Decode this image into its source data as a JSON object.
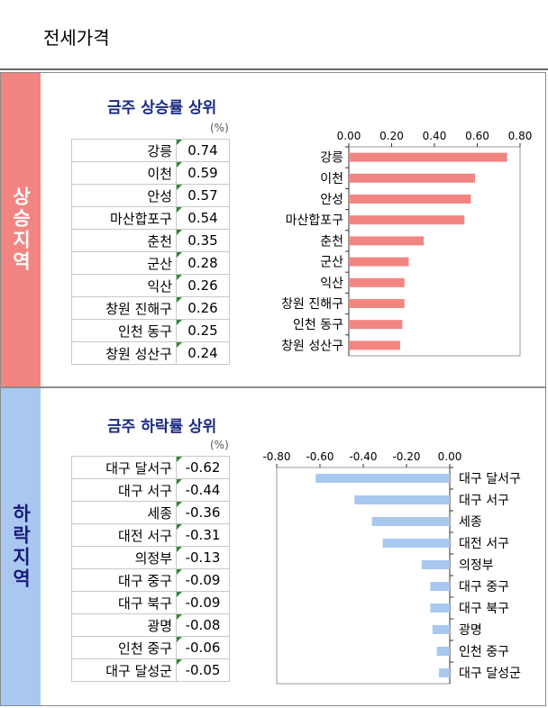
{
  "page_title": "전세가격",
  "rise": {
    "side_label": "상승지역",
    "title": "금주 상승률 상위",
    "unit": "(%)",
    "rows": [
      {
        "name": "강릉",
        "value": "0.74"
      },
      {
        "name": "이천",
        "value": "0.59"
      },
      {
        "name": "안성",
        "value": "0.57"
      },
      {
        "name": "마산합포구",
        "value": "0.54"
      },
      {
        "name": "춘천",
        "value": "0.35"
      },
      {
        "name": "군산",
        "value": "0.28"
      },
      {
        "name": "익산",
        "value": "0.26"
      },
      {
        "name": "창원 진해구",
        "value": "0.26"
      },
      {
        "name": "인천 동구",
        "value": "0.25"
      },
      {
        "name": "창원 성산구",
        "value": "0.24"
      }
    ]
  },
  "fall": {
    "side_label": "하락지역",
    "title": "금주 하락률 상위",
    "unit": "(%)",
    "rows": [
      {
        "name": "대구 달서구",
        "value": "-0.62"
      },
      {
        "name": "대구 서구",
        "value": "-0.44"
      },
      {
        "name": "세종",
        "value": "-0.36"
      },
      {
        "name": "대전 서구",
        "value": "-0.31"
      },
      {
        "name": "의정부",
        "value": "-0.13"
      },
      {
        "name": "대구 중구",
        "value": "-0.09"
      },
      {
        "name": "대구 북구",
        "value": "-0.09"
      },
      {
        "name": "광명",
        "value": "-0.08"
      },
      {
        "name": "인천 중구",
        "value": "-0.06"
      },
      {
        "name": "대구 달성군",
        "value": "-0.05"
      }
    ]
  },
  "chart_data": [
    {
      "type": "bar",
      "orientation": "horizontal",
      "categories": [
        "강릉",
        "이천",
        "안성",
        "마산합포구",
        "춘천",
        "군산",
        "익산",
        "창원 진해구",
        "인천 동구",
        "창원 성산구"
      ],
      "values": [
        0.74,
        0.59,
        0.57,
        0.54,
        0.35,
        0.28,
        0.26,
        0.26,
        0.25,
        0.24
      ],
      "xlim": [
        0,
        0.8
      ],
      "ticks": [
        "0.00",
        "0.20",
        "0.40",
        "0.60",
        "0.80"
      ],
      "tick_values": [
        0,
        0.2,
        0.4,
        0.6,
        0.8
      ],
      "axis_position": "top",
      "grid": false,
      "color": "#f28582"
    },
    {
      "type": "bar",
      "orientation": "horizontal",
      "categories": [
        "대구 달서구",
        "대구 서구",
        "세종",
        "대전 서구",
        "의정부",
        "대구 중구",
        "대구 북구",
        "광명",
        "인천 중구",
        "대구 달성군"
      ],
      "values": [
        -0.62,
        -0.44,
        -0.36,
        -0.31,
        -0.13,
        -0.09,
        -0.09,
        -0.08,
        -0.06,
        -0.05
      ],
      "xlim": [
        -0.8,
        0
      ],
      "ticks": [
        "-0.80",
        "-0.60",
        "-0.40",
        "-0.20",
        "0.00"
      ],
      "tick_values": [
        -0.8,
        -0.6,
        -0.4,
        -0.2,
        0
      ],
      "axis_position": "top",
      "grid": false,
      "color": "#a8c8f0"
    }
  ]
}
